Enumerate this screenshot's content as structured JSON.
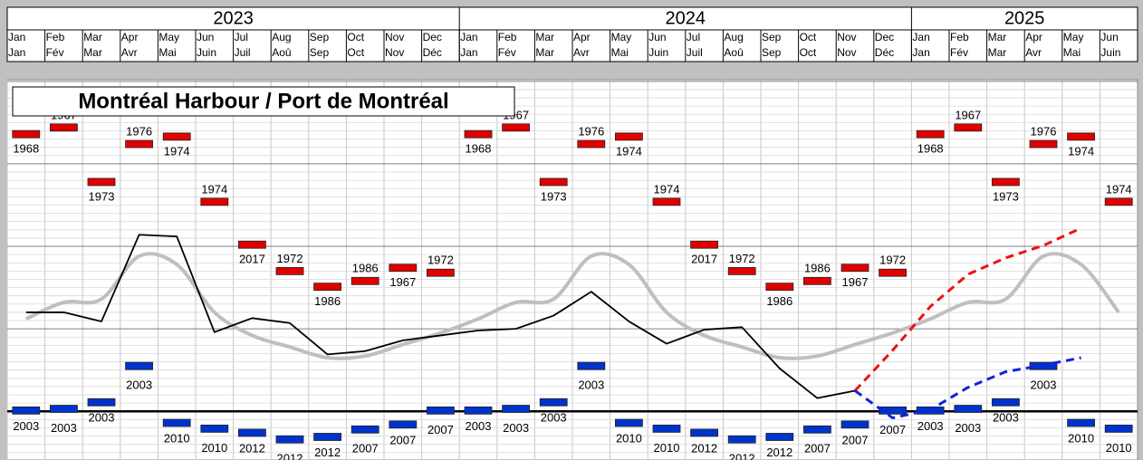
{
  "header": {
    "years": [
      {
        "year": "2023",
        "months": [
          {
            "en": "Jan",
            "fr": "Jan"
          },
          {
            "en": "Feb",
            "fr": "Fév"
          },
          {
            "en": "Mar",
            "fr": "Mar"
          },
          {
            "en": "Apr",
            "fr": "Avr"
          },
          {
            "en": "May",
            "fr": "Mai"
          },
          {
            "en": "Jun",
            "fr": "Juin"
          },
          {
            "en": "Jul",
            "fr": "Juil"
          },
          {
            "en": "Aug",
            "fr": "Aoû"
          },
          {
            "en": "Sep",
            "fr": "Sep"
          },
          {
            "en": "Oct",
            "fr": "Oct"
          },
          {
            "en": "Nov",
            "fr": "Nov"
          },
          {
            "en": "Dec",
            "fr": "Déc"
          }
        ]
      },
      {
        "year": "2024",
        "months": [
          {
            "en": "Jan",
            "fr": "Jan"
          },
          {
            "en": "Feb",
            "fr": "Fév"
          },
          {
            "en": "Mar",
            "fr": "Mar"
          },
          {
            "en": "Apr",
            "fr": "Avr"
          },
          {
            "en": "May",
            "fr": "Mai"
          },
          {
            "en": "Jun",
            "fr": "Juin"
          },
          {
            "en": "Jul",
            "fr": "Juil"
          },
          {
            "en": "Aug",
            "fr": "Aoû"
          },
          {
            "en": "Sep",
            "fr": "Sep"
          },
          {
            "en": "Oct",
            "fr": "Oct"
          },
          {
            "en": "Nov",
            "fr": "Nov"
          },
          {
            "en": "Dec",
            "fr": "Déc"
          }
        ]
      },
      {
        "year": "2025",
        "months": [
          {
            "en": "Jan",
            "fr": "Jan"
          },
          {
            "en": "Feb",
            "fr": "Fév"
          },
          {
            "en": "Mar",
            "fr": "Mar"
          },
          {
            "en": "Apr",
            "fr": "Avr"
          },
          {
            "en": "May",
            "fr": "Mai"
          },
          {
            "en": "Jun",
            "fr": "Juin"
          }
        ]
      }
    ]
  },
  "chart_data": {
    "type": "line",
    "title": "Montréal Harbour / Port de Montréal",
    "ylim": [
      -0.59,
      4.02
    ],
    "yticks": [
      0,
      1,
      2,
      3,
      4
    ],
    "grid": true,
    "bars": [
      {
        "color": "#e00000",
        "values": [
          3.36,
          3.44,
          2.78,
          3.24,
          3.33,
          2.54,
          2.02,
          1.7,
          1.51,
          1.58,
          1.74,
          1.68,
          3.36,
          3.44,
          2.78,
          3.24,
          3.33,
          2.54,
          2.02,
          1.7,
          1.51,
          1.58,
          1.74,
          1.68,
          3.36,
          3.44,
          2.78,
          3.24,
          3.33,
          2.54
        ],
        "years": [
          "1968",
          "1967",
          "1973",
          "1976",
          "1974",
          "1974",
          "2017",
          "1972",
          "1986",
          "1986",
          "1967",
          "1972",
          "1968",
          "1967",
          "1973",
          "1976",
          "1974",
          "1974",
          "2017",
          "1972",
          "1986",
          "1986",
          "1967",
          "1972",
          "1968",
          "1967",
          "1973",
          "1976",
          "1974",
          "1974"
        ]
      },
      {
        "color": "#0033cc",
        "values": [
          0.01,
          0.03,
          0.11,
          0.55,
          -0.14,
          -0.21,
          -0.26,
          -0.34,
          -0.31,
          -0.22,
          -0.16,
          0.01,
          0.01,
          0.03,
          0.11,
          0.55,
          -0.14,
          -0.21,
          -0.26,
          -0.34,
          -0.31,
          -0.22,
          -0.16,
          0.01,
          0.01,
          0.03,
          0.11,
          0.55,
          -0.14,
          -0.21
        ],
        "years": [
          "2003",
          "2003",
          "2003",
          "2003",
          "2010",
          "2010",
          "2012",
          "2012",
          "2012",
          "2007",
          "2007",
          "2007",
          "2003",
          "2003",
          "2003",
          "2003",
          "2010",
          "2010",
          "2012",
          "2012",
          "2012",
          "2007",
          "2007",
          "2007",
          "2003",
          "2003",
          "2003",
          "2003",
          "2010",
          "2010"
        ]
      }
    ],
    "series": [
      {
        "color": "#bfbfbf",
        "style": "smooth",
        "values": [
          1.12,
          1.32,
          1.36,
          1.88,
          1.78,
          1.2,
          0.92,
          0.78,
          0.65,
          0.67,
          0.81,
          0.95,
          1.12,
          1.32,
          1.36,
          1.88,
          1.78,
          1.2,
          0.92,
          0.78,
          0.65,
          0.67,
          0.81,
          0.95,
          1.12,
          1.32,
          1.36,
          1.88,
          1.78,
          1.2
        ]
      },
      {
        "color": "#000000",
        "style": "solid",
        "values": [
          1.2,
          1.2,
          1.09,
          2.14,
          2.12,
          0.96,
          1.13,
          1.07,
          0.69,
          0.73,
          0.86,
          0.92,
          0.98,
          1.0,
          1.16,
          1.45,
          1.09,
          0.82,
          0.99,
          1.02,
          0.52,
          0.16,
          0.25,
          null,
          null,
          null,
          null,
          null,
          null,
          null
        ]
      },
      {
        "color": "#ee1111",
        "style": "dashed",
        "values": [
          null,
          null,
          null,
          null,
          null,
          null,
          null,
          null,
          null,
          null,
          null,
          null,
          null,
          null,
          null,
          null,
          null,
          null,
          null,
          null,
          null,
          null,
          0.25,
          0.74,
          1.27,
          1.66,
          1.86,
          2.01,
          2.22,
          null
        ]
      },
      {
        "color": "#1122dd",
        "style": "dashed",
        "values": [
          null,
          null,
          null,
          null,
          null,
          null,
          null,
          null,
          null,
          null,
          null,
          null,
          null,
          null,
          null,
          null,
          null,
          null,
          null,
          null,
          null,
          null,
          0.25,
          -0.08,
          0.02,
          0.29,
          0.48,
          0.56,
          0.65,
          null
        ]
      }
    ]
  }
}
